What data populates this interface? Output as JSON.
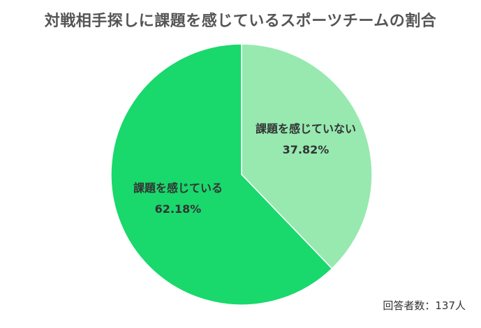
{
  "chart_data": {
    "type": "pie",
    "title": "対戦相手探しに課題を感じているスポーツチームの割合",
    "slices": [
      {
        "label": "課題を感じていない",
        "value": 37.82,
        "value_label": "37.82%",
        "color": "#97E9B0"
      },
      {
        "label": "課題を感じている",
        "value": 62.18,
        "value_label": "62.18%",
        "color": "#19D86C"
      }
    ],
    "start": "12 o'clock",
    "direction": "clockwise"
  },
  "footnote": "回答者数：137人"
}
